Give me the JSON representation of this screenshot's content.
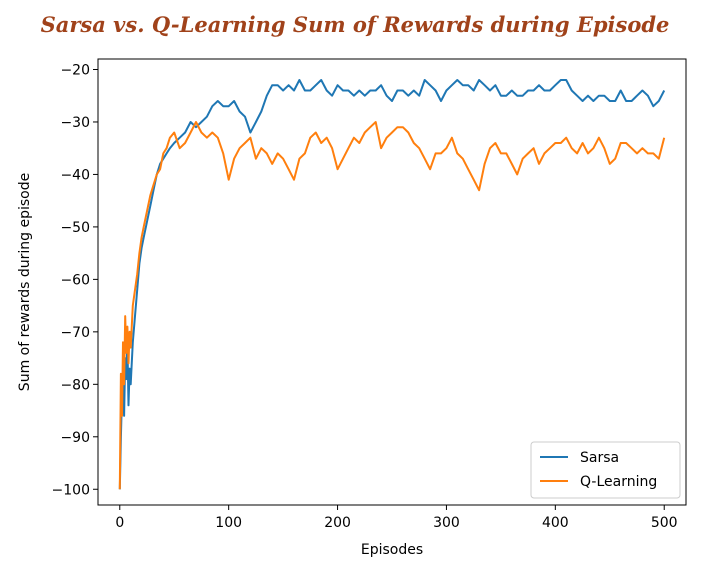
{
  "title": "Sarsa vs. Q-Learning Sum of Rewards during Episode",
  "colors": {
    "title": "#a0421a",
    "sarsa": "#1f77b4",
    "qlearning": "#ff7f0e",
    "axis": "#000000"
  },
  "chart_data": {
    "type": "line",
    "title": "Sarsa vs. Q-Learning Sum of Rewards during Episode",
    "xlabel": "Episodes",
    "ylabel": "Sum of rewards during episode",
    "xlim": [
      -20,
      520
    ],
    "ylim": [
      -103,
      -18
    ],
    "xticks": [
      0,
      100,
      200,
      300,
      400,
      500
    ],
    "yticks": [
      -100,
      -90,
      -80,
      -70,
      -60,
      -50,
      -40,
      -30,
      -20
    ],
    "grid": false,
    "legend_position": "lower-right",
    "series": [
      {
        "name": "Sarsa",
        "x": [
          0,
          1,
          2,
          3,
          4,
          5,
          6,
          7,
          8,
          9,
          10,
          12,
          14,
          16,
          18,
          20,
          22,
          25,
          28,
          31,
          34,
          37,
          40,
          43,
          46,
          50,
          55,
          60,
          65,
          70,
          75,
          80,
          85,
          90,
          95,
          100,
          105,
          110,
          115,
          120,
          125,
          130,
          135,
          140,
          145,
          150,
          155,
          160,
          165,
          170,
          175,
          180,
          185,
          190,
          195,
          200,
          205,
          210,
          215,
          220,
          225,
          230,
          235,
          240,
          245,
          250,
          255,
          260,
          265,
          270,
          275,
          280,
          285,
          290,
          295,
          300,
          305,
          310,
          315,
          320,
          325,
          330,
          335,
          340,
          345,
          350,
          355,
          360,
          365,
          370,
          375,
          380,
          385,
          390,
          395,
          400,
          405,
          410,
          415,
          420,
          425,
          430,
          435,
          440,
          445,
          450,
          455,
          460,
          465,
          470,
          475,
          480,
          485,
          490,
          495,
          500
        ],
        "y": [
          -100,
          -90,
          -82,
          -78,
          -86,
          -75,
          -79,
          -72,
          -84,
          -77,
          -80,
          -72,
          -67,
          -62,
          -57,
          -54,
          -52,
          -49,
          -46,
          -43,
          -40,
          -38,
          -37,
          -36,
          -35,
          -34,
          -33,
          -32,
          -30,
          -31,
          -30,
          -29,
          -27,
          -26,
          -27,
          -27,
          -26,
          -28,
          -29,
          -32,
          -30,
          -28,
          -25,
          -23,
          -23,
          -24,
          -23,
          -24,
          -22,
          -24,
          -24,
          -23,
          -22,
          -24,
          -25,
          -23,
          -24,
          -24,
          -25,
          -24,
          -25,
          -24,
          -24,
          -23,
          -25,
          -26,
          -24,
          -24,
          -25,
          -24,
          -25,
          -22,
          -23,
          -24,
          -26,
          -24,
          -23,
          -22,
          -23,
          -23,
          -24,
          -22,
          -23,
          -24,
          -23,
          -25,
          -25,
          -24,
          -25,
          -25,
          -24,
          -24,
          -23,
          -24,
          -24,
          -23,
          -22,
          -22,
          -24,
          -25,
          -26,
          -25,
          -26,
          -25,
          -25,
          -26,
          -26,
          -24,
          -26,
          -26,
          -25,
          -24,
          -25,
          -27,
          -26,
          -24
        ]
      },
      {
        "name": "Q-Learning",
        "x": [
          0,
          1,
          2,
          3,
          4,
          5,
          6,
          7,
          8,
          9,
          10,
          12,
          14,
          16,
          18,
          20,
          22,
          25,
          28,
          31,
          34,
          37,
          40,
          43,
          46,
          50,
          55,
          60,
          65,
          70,
          75,
          80,
          85,
          90,
          95,
          100,
          105,
          110,
          115,
          120,
          125,
          130,
          135,
          140,
          145,
          150,
          155,
          160,
          165,
          170,
          175,
          180,
          185,
          190,
          195,
          200,
          205,
          210,
          215,
          220,
          225,
          230,
          235,
          240,
          245,
          250,
          255,
          260,
          265,
          270,
          275,
          280,
          285,
          290,
          295,
          300,
          305,
          310,
          315,
          320,
          325,
          330,
          335,
          340,
          345,
          350,
          355,
          360,
          365,
          370,
          375,
          380,
          385,
          390,
          395,
          400,
          405,
          410,
          415,
          420,
          425,
          430,
          435,
          440,
          445,
          450,
          455,
          460,
          465,
          470,
          475,
          480,
          485,
          490,
          495,
          500
        ],
        "y": [
          -100,
          -78,
          -86,
          -72,
          -80,
          -67,
          -74,
          -69,
          -76,
          -70,
          -73,
          -65,
          -62,
          -59,
          -55,
          -52,
          -50,
          -47,
          -44,
          -42,
          -40,
          -39,
          -36,
          -35,
          -33,
          -32,
          -35,
          -34,
          -32,
          -30,
          -32,
          -33,
          -32,
          -33,
          -36,
          -41,
          -37,
          -35,
          -34,
          -33,
          -37,
          -35,
          -36,
          -38,
          -36,
          -37,
          -39,
          -41,
          -37,
          -36,
          -33,
          -32,
          -34,
          -33,
          -35,
          -39,
          -37,
          -35,
          -33,
          -34,
          -32,
          -31,
          -30,
          -35,
          -33,
          -32,
          -31,
          -31,
          -32,
          -34,
          -35,
          -37,
          -39,
          -36,
          -36,
          -35,
          -33,
          -36,
          -37,
          -39,
          -41,
          -43,
          -38,
          -35,
          -34,
          -36,
          -36,
          -38,
          -40,
          -37,
          -36,
          -35,
          -38,
          -36,
          -35,
          -34,
          -34,
          -33,
          -35,
          -36,
          -34,
          -36,
          -35,
          -33,
          -35,
          -38,
          -37,
          -34,
          -34,
          -35,
          -36,
          -35,
          -36,
          -36,
          -37,
          -33
        ]
      }
    ]
  }
}
